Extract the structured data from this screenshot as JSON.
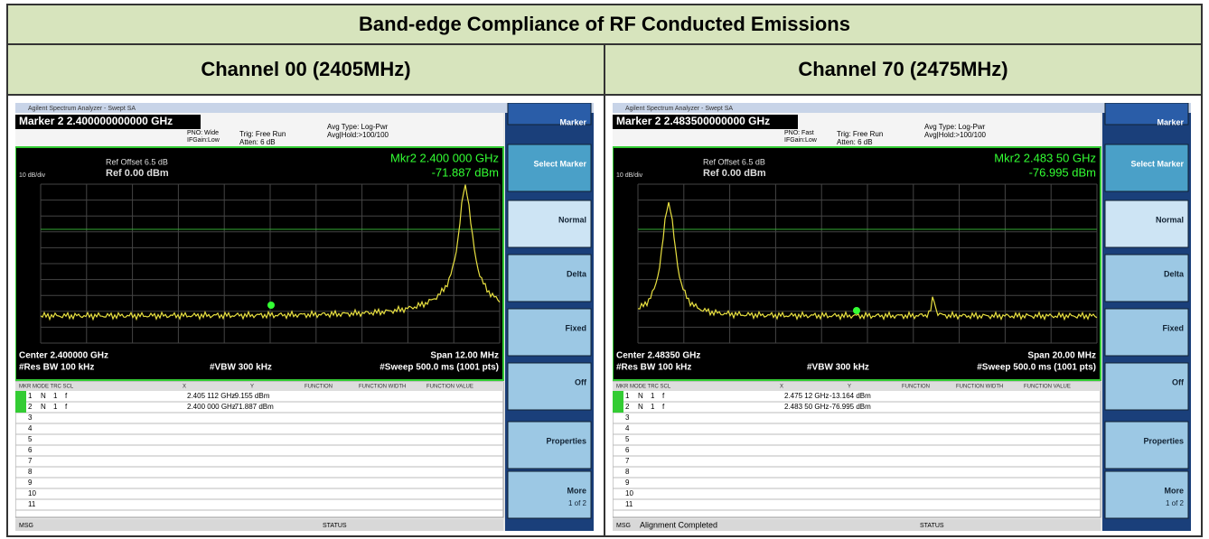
{
  "header": {
    "title": "Band-edge Compliance of RF Conducted Emissions"
  },
  "table": {
    "columns": [
      "Channel 00 (2405MHz)",
      "Channel 70 (2475MHz)"
    ]
  },
  "screens": [
    {
      "title_bar": "Agilent Spectrum Analyzer - Swept SA",
      "marker_line": "Marker 2 2.400000000000 GHz",
      "pno": "PNO: Wide",
      "if_gain": "IFGain:Low",
      "trig": "Trig: Free Run",
      "atten": "Atten: 6 dB",
      "avg_type": "Avg Type: Log-Pwr",
      "avg_hold": "Avg|Hold:>100/100",
      "ref_offset": "Ref Offset 6.5 dB",
      "scale": "10 dB/div",
      "ref_level": "Ref 0.00 dBm",
      "mkr_freq": "Mkr2 2.400 000 GHz",
      "mkr_level": "-71.887 dBm",
      "center": "Center 2.400000 GHz",
      "span": "Span 12.00 MHz",
      "rbw": "#Res BW 100 kHz",
      "vbw": "#VBW 300 kHz",
      "sweep": "#Sweep 500.0 ms (1001 pts)",
      "table_header": [
        "MKR MODE TRC SCL",
        "X",
        "Y",
        "FUNCTION",
        "FUNCTION WIDTH",
        "FUNCTION VALUE"
      ],
      "rows": [
        [
          "1",
          "N",
          "1",
          "f",
          "2.405 112 GHz",
          "-9.155 dBm"
        ],
        [
          "2",
          "N",
          "1",
          "f",
          "2.400 000 GHz",
          "-71.887 dBm"
        ],
        [
          "3"
        ],
        [
          "4"
        ],
        [
          "5"
        ],
        [
          "6"
        ],
        [
          "7"
        ],
        [
          "8"
        ],
        [
          "9"
        ],
        [
          "10"
        ],
        [
          "11"
        ]
      ],
      "softkeys": [
        "Marker",
        "Select Marker",
        "Normal",
        "Delta",
        "Fixed",
        "Off",
        "Properties",
        "More",
        "1 of 2"
      ],
      "status_msg": "MSG",
      "status_text": "",
      "status": "STATUS"
    },
    {
      "title_bar": "Agilent Spectrum Analyzer - Swept SA",
      "marker_line": "Marker 2 2.483500000000 GHz",
      "pno": "PNO: Fast",
      "if_gain": "IFGain:Low",
      "trig": "Trig: Free Run",
      "atten": "Atten: 6 dB",
      "avg_type": "Avg Type: Log-Pwr",
      "avg_hold": "Avg|Hold:>100/100",
      "ref_offset": "Ref Offset 6.5 dB",
      "scale": "10 dB/div",
      "ref_level": "Ref 0.00 dBm",
      "mkr_freq": "Mkr2 2.483 50 GHz",
      "mkr_level": "-76.995 dBm",
      "center": "Center 2.48350 GHz",
      "span": "Span 20.00 MHz",
      "rbw": "#Res BW 100 kHz",
      "vbw": "#VBW 300 kHz",
      "sweep": "#Sweep 500.0 ms (1001 pts)",
      "table_header": [
        "MKR MODE TRC SCL",
        "X",
        "Y",
        "FUNCTION",
        "FUNCTION WIDTH",
        "FUNCTION VALUE"
      ],
      "rows": [
        [
          "1",
          "N",
          "1",
          "f",
          "2.475 12 GHz",
          "-13.164 dBm"
        ],
        [
          "2",
          "N",
          "1",
          "f",
          "2.483 50 GHz",
          "-76.995 dBm"
        ],
        [
          "3"
        ],
        [
          "4"
        ],
        [
          "5"
        ],
        [
          "6"
        ],
        [
          "7"
        ],
        [
          "8"
        ],
        [
          "9"
        ],
        [
          "10"
        ],
        [
          "11"
        ]
      ],
      "softkeys": [
        "Marker",
        "Select Marker",
        "Normal",
        "Delta",
        "Fixed",
        "Off",
        "Properties",
        "More",
        "1 of 2"
      ],
      "status_msg": "MSG",
      "status_text": "Alignment Completed",
      "status": "STATUS"
    }
  ]
}
